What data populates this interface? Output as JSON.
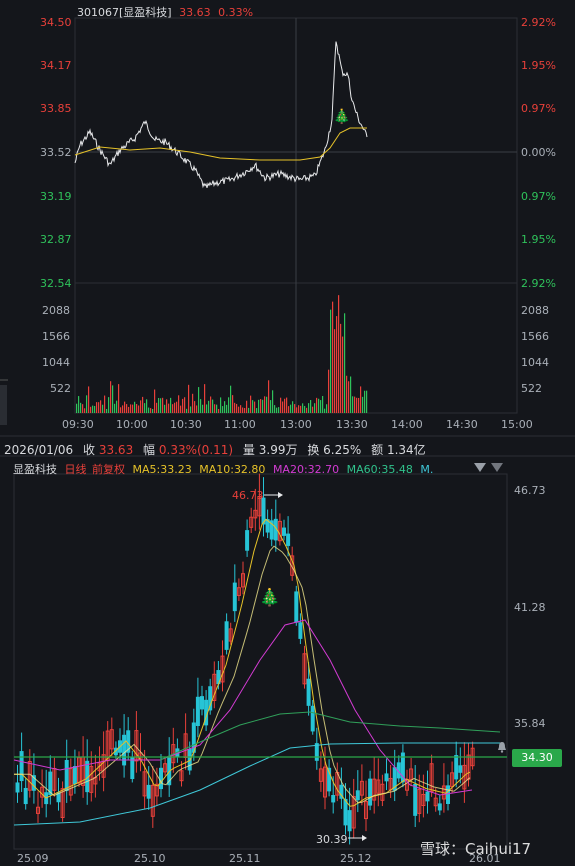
{
  "intraday": {
    "code": "301067[显盈科技]",
    "price": "33.63",
    "change": "0.33%",
    "y_left": [
      "34.50",
      "34.17",
      "33.85",
      "33.52",
      "33.19",
      "32.87",
      "32.54"
    ],
    "y_right": [
      "2.92%",
      "1.95%",
      "0.97%",
      "0.00%",
      "0.97%",
      "1.95%",
      "2.92%"
    ],
    "vol_ticks": [
      "2088",
      "1566",
      "1044",
      "522"
    ],
    "times": [
      "09:30",
      "10:00",
      "10:30",
      "11:00",
      "13:00",
      "13:30",
      "14:00",
      "14:30",
      "15:00"
    ]
  },
  "info_bar": {
    "date": "2026/01/06",
    "close_label": "收",
    "close": "33.63",
    "amp_label": "幅",
    "amp": "0.33%(0.11)",
    "vol_label": "量",
    "vol": "3.99万",
    "turn_label": "换",
    "turn": "6.25%",
    "amt_label": "额",
    "amt": "1.34亿"
  },
  "kline": {
    "name": "显盈科技",
    "period": "日线",
    "adjust": "前复权",
    "ma5": "MA5:33.23",
    "ma10": "MA10:32.80",
    "ma20": "MA20:32.70",
    "ma60": "MA60:35.48",
    "ma_more": "M.",
    "y_ticks": [
      "46.73",
      "41.28",
      "35.84"
    ],
    "high_label": "46.73",
    "low_label": "30.39",
    "current_price": "34.30",
    "x_ticks": [
      "25.09",
      "25.10",
      "25.11",
      "25.12",
      "26.01"
    ]
  },
  "watermark": "雪球：Caihui17",
  "colors": {
    "up": "#e8403a",
    "down": "#2fc25b",
    "ma5": "#e6c229",
    "ma20": "#d33bd3",
    "ma60": "#30a05a",
    "ma120": "#3fc8d8"
  }
}
